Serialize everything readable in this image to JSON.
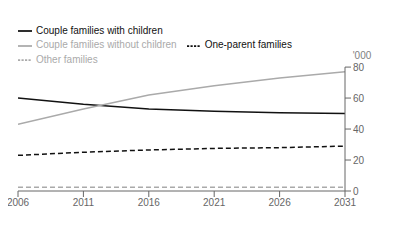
{
  "chart_data": {
    "type": "line",
    "x": [
      2006,
      2011,
      2016,
      2021,
      2026,
      2031
    ],
    "xlim": [
      2006,
      2031
    ],
    "xticks": [
      2006,
      2011,
      2016,
      2021,
      2026,
      2031
    ],
    "ylim": [
      0,
      80
    ],
    "yticks": [
      0,
      20,
      40,
      60,
      80
    ],
    "ylabel": "'000",
    "grid": false,
    "legend": "upper left",
    "series": [
      {
        "name": "Couple families with children",
        "color": "#111111",
        "line_style": "solid",
        "values": [
          60,
          56,
          53,
          51.5,
          50.5,
          50
        ]
      },
      {
        "name": "Couple families without children",
        "color": "#aaaaaa",
        "line_style": "solid",
        "values": [
          43,
          53,
          62,
          68,
          73,
          77
        ]
      },
      {
        "name": "One-parent families",
        "color": "#111111",
        "line_style": "dashed",
        "values": [
          23,
          25,
          26.5,
          27.5,
          28,
          29
        ]
      },
      {
        "name": "Other families",
        "color": "#aaaaaa",
        "line_style": "dashed",
        "values": [
          2.5,
          2.5,
          2.5,
          2.5,
          2.5,
          2.5
        ]
      }
    ]
  }
}
